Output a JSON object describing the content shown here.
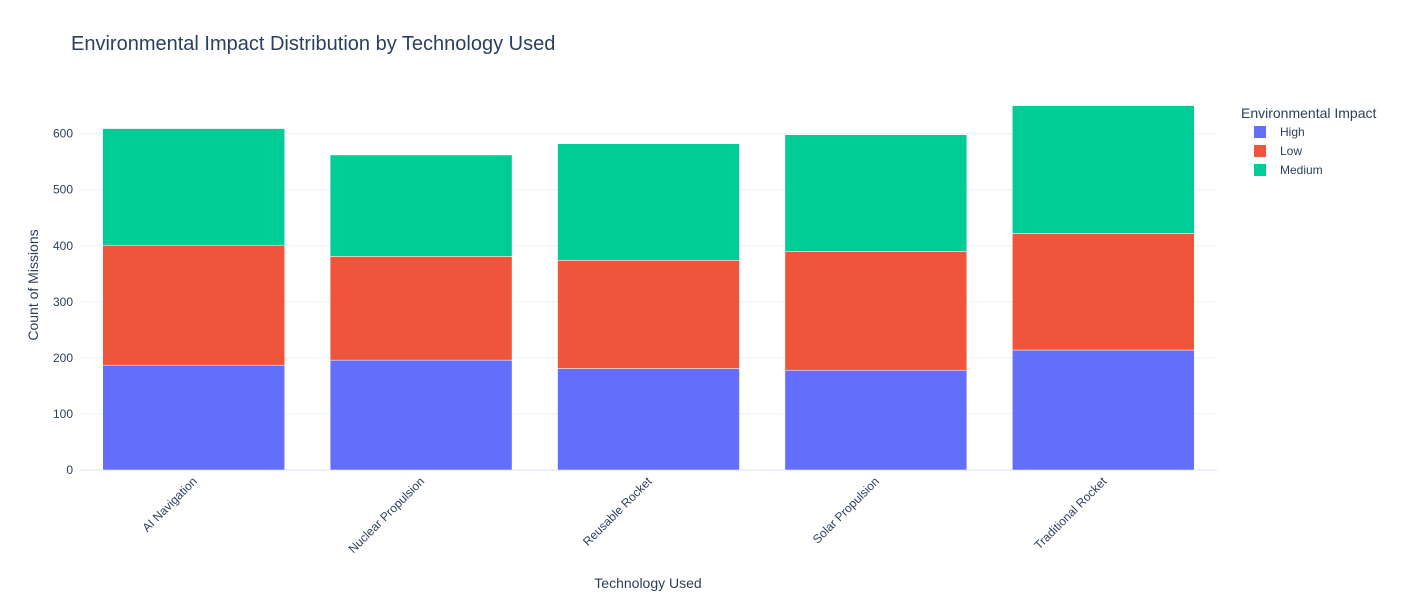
{
  "colors": {
    "High": "#636efa",
    "Low": "#ef553b",
    "Medium": "#00cc96",
    "text": "#2a3f5f",
    "grid": "#ebf0f8"
  },
  "chart_data": {
    "type": "bar",
    "stacked": true,
    "title": "Environmental Impact Distribution by Technology Used",
    "xlabel": "Technology Used",
    "ylabel": "Count of Missions",
    "ylim": [
      0,
      660
    ],
    "yticks": [
      0,
      100,
      200,
      300,
      400,
      500,
      600
    ],
    "grid": true,
    "legend_title": "Environmental Impact",
    "legend_position": "top-right",
    "categories": [
      "AI Navigation",
      "Nuclear Propulsion",
      "Reusable Rocket",
      "Solar Propulsion",
      "Traditional Rocket"
    ],
    "series": [
      {
        "name": "High",
        "values": [
          187,
          196,
          181,
          178,
          214
        ]
      },
      {
        "name": "Low",
        "values": [
          214,
          185,
          193,
          212,
          208
        ]
      },
      {
        "name": "Medium",
        "values": [
          208,
          181,
          208,
          208,
          228
        ]
      }
    ]
  }
}
